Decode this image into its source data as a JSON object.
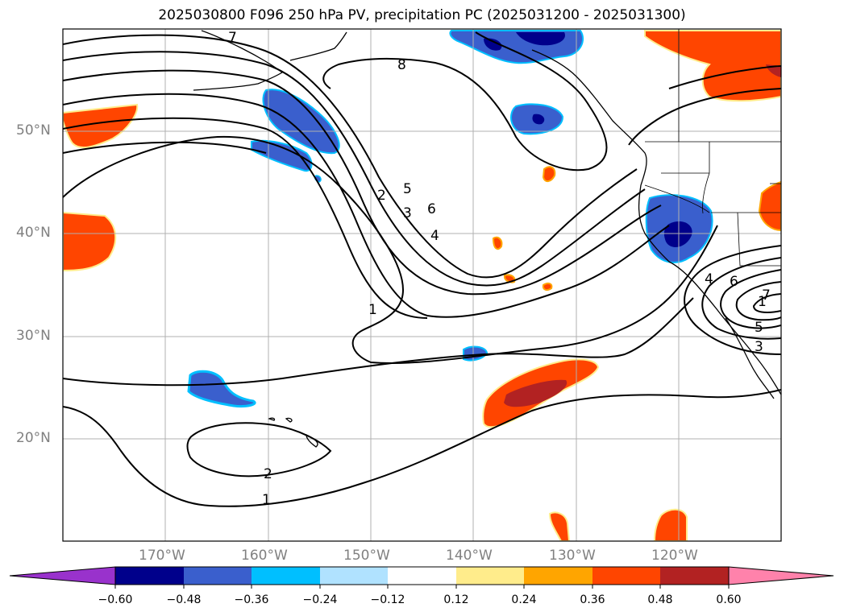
{
  "title": "2025030800 F096 250 hPa PV, precipitation PC (2025031200 - 2025031300)",
  "lat_labels": [
    "50°N",
    "40°N",
    "30°N",
    "20°N"
  ],
  "lon_labels": [
    "170°W",
    "160°W",
    "150°W",
    "140°W",
    "130°W",
    "120°W"
  ],
  "contour_labels": [
    "1",
    "2",
    "3",
    "4",
    "5",
    "6",
    "7",
    "8",
    "1",
    "2",
    "1",
    "4",
    "6",
    "7",
    "5",
    "3"
  ],
  "colorbar": {
    "ticks": [
      "−0.60",
      "−0.48",
      "−0.36",
      "−0.24",
      "−0.12",
      "0.12",
      "0.24",
      "0.36",
      "0.48",
      "0.60"
    ],
    "colors": [
      "#9932cc",
      "#00008b",
      "#3a5fcd",
      "#00bfff",
      "#b0e2ff",
      "#ffffff",
      "#ffec8b",
      "#ffa500",
      "#ff4500",
      "#b22222",
      "#ff82ab"
    ]
  },
  "map": {
    "lat_range": [
      10,
      60
    ],
    "lon_range": [
      -180,
      -110
    ],
    "projection": "PlateCarree",
    "contour_field": "250 hPa PV",
    "fill_field": "precipitation PC"
  }
}
